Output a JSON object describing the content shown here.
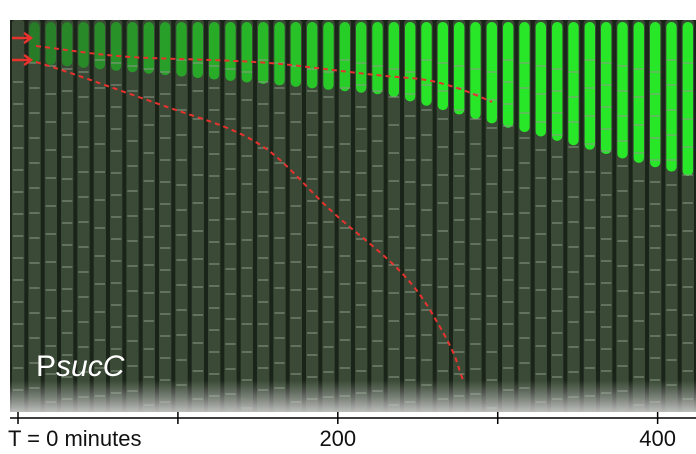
{
  "image_label": {
    "prefix": "P",
    "italic": "sucC"
  },
  "time_axis": {
    "xlim": [
      -5,
      424
    ],
    "ticks": [
      {
        "value": 0,
        "label": "T = 0 minutes"
      },
      200,
      400
    ],
    "minor_ticks": [
      100,
      300
    ]
  }
}
